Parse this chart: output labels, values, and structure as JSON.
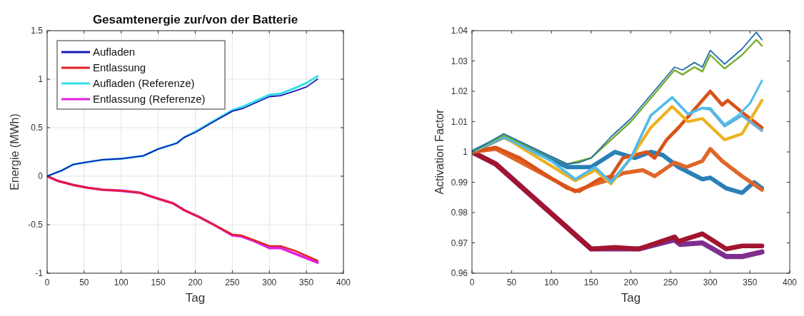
{
  "chart_data": [
    {
      "type": "line",
      "title": "Gesamtenergie zur/von der Batterie",
      "xlabel": "Tag",
      "ylabel": "Energie (MWh)",
      "xlim": [
        0,
        400
      ],
      "xticks": [
        0,
        50,
        100,
        150,
        200,
        250,
        300,
        350,
        400
      ],
      "ylim": [
        -1,
        1.5
      ],
      "yticks": [
        -1,
        -0.5,
        0,
        0.5,
        1,
        1.5
      ],
      "grid": true,
      "legend": "top left",
      "series": [
        {
          "name": "Aufladen",
          "color": "#1818b8",
          "x": [
            0,
            20,
            35,
            50,
            75,
            100,
            130,
            150,
            175,
            185,
            200,
            220,
            250,
            265,
            300,
            315,
            335,
            350,
            365
          ],
          "values": [
            0,
            0.06,
            0.12,
            0.14,
            0.17,
            0.18,
            0.21,
            0.28,
            0.34,
            0.4,
            0.45,
            0.54,
            0.67,
            0.7,
            0.82,
            0.83,
            0.88,
            0.92,
            1.0
          ]
        },
        {
          "name": "Entlassung",
          "color": "#e02020",
          "x": [
            0,
            15,
            35,
            55,
            75,
            100,
            125,
            145,
            170,
            185,
            205,
            225,
            250,
            262,
            280,
            300,
            315,
            335,
            365
          ],
          "values": [
            0,
            -0.05,
            -0.09,
            -0.12,
            -0.14,
            -0.15,
            -0.17,
            -0.22,
            -0.28,
            -0.35,
            -0.42,
            -0.5,
            -0.6,
            -0.61,
            -0.66,
            -0.72,
            -0.72,
            -0.77,
            -0.87
          ]
        },
        {
          "name": "Aufladen (Referenze)",
          "color": "#33e0e8",
          "x": [
            0,
            20,
            35,
            50,
            75,
            100,
            130,
            150,
            175,
            185,
            200,
            220,
            250,
            265,
            300,
            315,
            335,
            350,
            365
          ],
          "values": [
            0,
            0.06,
            0.12,
            0.14,
            0.17,
            0.18,
            0.21,
            0.28,
            0.34,
            0.4,
            0.46,
            0.55,
            0.68,
            0.72,
            0.84,
            0.85,
            0.91,
            0.96,
            1.03
          ]
        },
        {
          "name": "Entlassung (Referenze)",
          "color": "#e020e0",
          "x": [
            0,
            15,
            35,
            55,
            75,
            100,
            125,
            145,
            170,
            185,
            205,
            225,
            250,
            262,
            280,
            300,
            315,
            335,
            365
          ],
          "values": [
            0,
            -0.05,
            -0.09,
            -0.12,
            -0.14,
            -0.15,
            -0.17,
            -0.22,
            -0.28,
            -0.35,
            -0.42,
            -0.5,
            -0.61,
            -0.62,
            -0.67,
            -0.74,
            -0.74,
            -0.8,
            -0.89
          ]
        }
      ]
    },
    {
      "type": "line",
      "xlabel": "Tag",
      "ylabel": "Activation Factor",
      "xlim": [
        0,
        400
      ],
      "xticks": [
        0,
        50,
        100,
        150,
        200,
        250,
        300,
        350,
        400
      ],
      "ylim": [
        0.96,
        1.04
      ],
      "yticks": [
        0.96,
        0.97,
        0.98,
        0.99,
        1,
        1.01,
        1.02,
        1.03,
        1.04
      ],
      "grid": false,
      "legend": false,
      "series": [
        {
          "color": "#1f6fa8",
          "x": [
            0,
            40,
            120,
            135,
            150,
            175,
            200,
            255,
            265,
            280,
            290,
            300,
            318,
            340,
            358,
            365
          ],
          "values": [
            1,
            1.006,
            0.996,
            0.9965,
            0.998,
            1.005,
            1.011,
            1.028,
            1.027,
            1.0295,
            1.028,
            1.0335,
            1.029,
            1.034,
            1.0395,
            1.037
          ]
        },
        {
          "color": "#77ac30",
          "x": [
            0,
            40,
            120,
            150,
            200,
            255,
            265,
            280,
            290,
            300,
            318,
            340,
            358,
            365
          ],
          "values": [
            1,
            1.0055,
            0.996,
            0.998,
            1.01,
            1.027,
            1.0255,
            1.028,
            1.0265,
            1.032,
            1.0275,
            1.032,
            1.037,
            1.035
          ]
        },
        {
          "color": "#4dbeee",
          "x": [
            0,
            40,
            100,
            130,
            155,
            175,
            200,
            225,
            252,
            272,
            290,
            300,
            318,
            335,
            350,
            365
          ],
          "values": [
            1,
            1.005,
            0.997,
            0.991,
            0.995,
            0.99,
            0.998,
            1.012,
            1.018,
            1.0125,
            1.0145,
            1.0145,
            1.009,
            1.012,
            1.016,
            1.0235
          ]
        },
        {
          "color": "#6aaed6",
          "x": [
            0,
            40,
            100,
            130,
            155,
            175,
            200,
            225,
            252,
            272,
            290,
            300,
            318,
            340,
            365
          ],
          "values": [
            1,
            1.005,
            0.997,
            0.991,
            0.995,
            0.99,
            0.998,
            1.012,
            1.018,
            1.0125,
            1.0145,
            1.014,
            1.0085,
            1.012,
            1.007
          ]
        },
        {
          "color": "#edb120",
          "x": [
            0,
            40,
            130,
            155,
            175,
            200,
            225,
            252,
            272,
            290,
            318,
            340,
            365
          ],
          "values": [
            1,
            1.005,
            0.9905,
            0.994,
            0.9895,
            0.998,
            1.008,
            1.015,
            1.01,
            1.011,
            1.004,
            1.006,
            1.017
          ]
        },
        {
          "color": "#d95319",
          "x": [
            0,
            30,
            60,
            120,
            135,
            160,
            175,
            190,
            220,
            230,
            245,
            260,
            300,
            315,
            322,
            345,
            365
          ],
          "values": [
            1,
            1.0015,
            0.998,
            0.988,
            0.987,
            0.991,
            0.992,
            0.998,
            1,
            0.998,
            1.004,
            1.008,
            1.02,
            1.0155,
            1.017,
            1.012,
            1.008
          ]
        },
        {
          "color": "#e0662a",
          "x": [
            0,
            30,
            130,
            150,
            175,
            190,
            215,
            230,
            255,
            270,
            290,
            300,
            315,
            340,
            365
          ],
          "values": [
            1,
            1.001,
            0.987,
            0.989,
            0.991,
            0.993,
            0.994,
            0.992,
            0.9965,
            0.995,
            0.997,
            1.001,
            0.997,
            0.992,
            0.9875
          ]
        },
        {
          "color": "#2a7fb8",
          "x": [
            0,
            40,
            120,
            150,
            180,
            205,
            225,
            240,
            260,
            290,
            300,
            320,
            340,
            355,
            365
          ],
          "values": [
            1,
            1.005,
            0.995,
            0.995,
            1,
            0.998,
            1,
            0.999,
            0.995,
            0.991,
            0.9915,
            0.988,
            0.9865,
            0.99,
            0.988
          ]
        },
        {
          "color": "#a2142f",
          "x": [
            0,
            30,
            150,
            180,
            210,
            255,
            260,
            290,
            320,
            340,
            365
          ],
          "values": [
            1,
            0.996,
            0.968,
            0.9685,
            0.968,
            0.972,
            0.9705,
            0.973,
            0.968,
            0.969,
            0.969
          ]
        },
        {
          "color": "#7e2f8e",
          "x": [
            0,
            30,
            150,
            210,
            255,
            262,
            290,
            320,
            340,
            365
          ],
          "values": [
            1,
            0.996,
            0.968,
            0.968,
            0.971,
            0.9695,
            0.97,
            0.9655,
            0.9655,
            0.967
          ]
        }
      ]
    }
  ]
}
